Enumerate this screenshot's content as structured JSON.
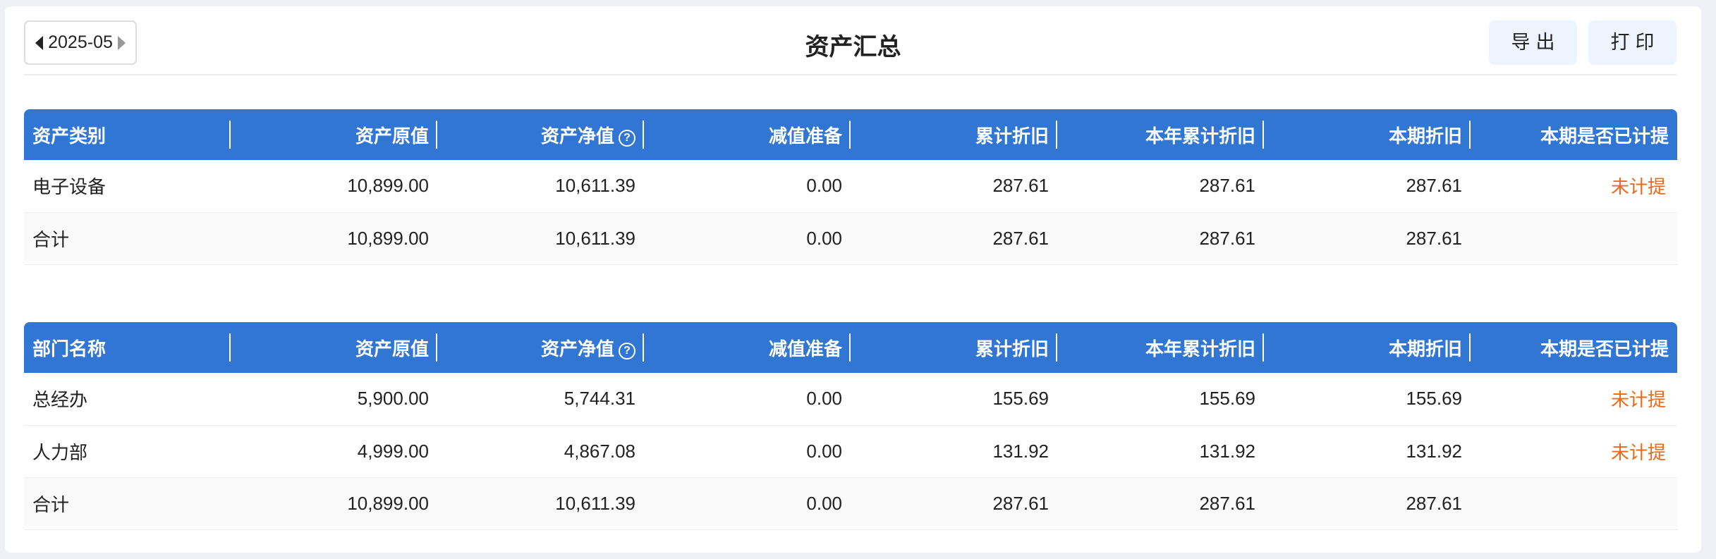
{
  "header": {
    "period": "2025-05",
    "title": "资产汇总",
    "export_label": "导出",
    "print_label": "打印"
  },
  "colors": {
    "header_bg": "#3176d3",
    "warn": "#ea6a1a"
  },
  "table1": {
    "columns": [
      "资产类别",
      "资产原值",
      "资产净值",
      "减值准备",
      "累计折旧",
      "本年累计折旧",
      "本期折旧",
      "本期是否已计提"
    ],
    "rows": [
      [
        "电子设备",
        "10,899.00",
        "10,611.39",
        "0.00",
        "287.61",
        "287.61",
        "287.61",
        "未计提"
      ],
      [
        "合计",
        "10,899.00",
        "10,611.39",
        "0.00",
        "287.61",
        "287.61",
        "287.61",
        ""
      ]
    ]
  },
  "table2": {
    "columns": [
      "部门名称",
      "资产原值",
      "资产净值",
      "减值准备",
      "累计折旧",
      "本年累计折旧",
      "本期折旧",
      "本期是否已计提"
    ],
    "rows": [
      [
        "总经办",
        "5,900.00",
        "5,744.31",
        "0.00",
        "155.69",
        "155.69",
        "155.69",
        "未计提"
      ],
      [
        "人力部",
        "4,999.00",
        "4,867.08",
        "0.00",
        "131.92",
        "131.92",
        "131.92",
        "未计提"
      ],
      [
        "合计",
        "10,899.00",
        "10,611.39",
        "0.00",
        "287.61",
        "287.61",
        "287.61",
        ""
      ]
    ]
  }
}
